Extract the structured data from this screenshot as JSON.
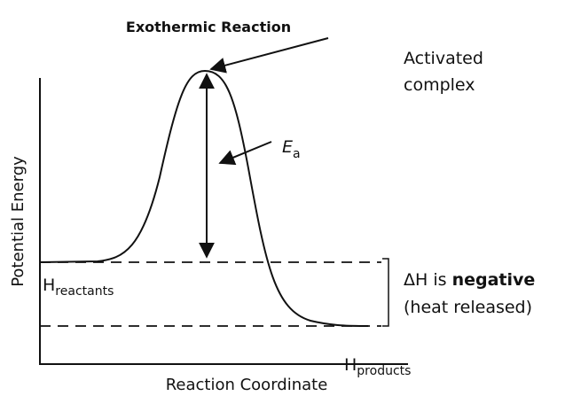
{
  "title": "Exothermic Reaction",
  "axes": {
    "x_label": "Reaction Coordinate",
    "y_label": "Potential Energy"
  },
  "annotations": {
    "activated_complex": [
      "Activated",
      "complex"
    ],
    "ea": {
      "symbol": "E",
      "subscript": "a"
    },
    "reactants": {
      "symbol": "H",
      "subscript": "reactants"
    },
    "products": {
      "symbol": "H",
      "subscript": "products"
    },
    "delta_h": {
      "lead": "ΔH is",
      "emphasis": "negative",
      "note": "(heat released)"
    }
  }
}
